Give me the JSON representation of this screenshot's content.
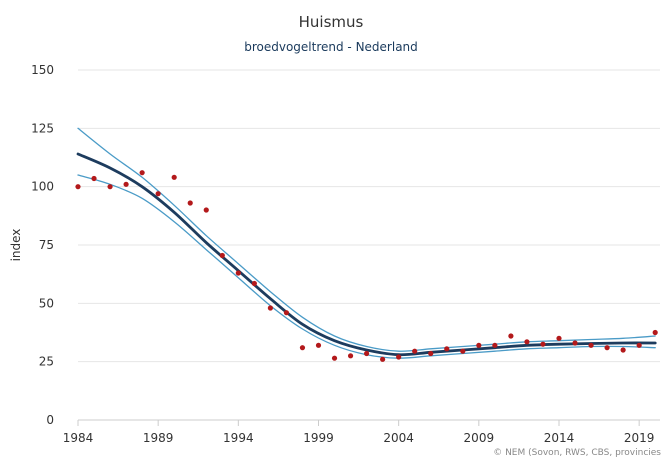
{
  "chart_data": {
    "type": "line",
    "title": "Huismus",
    "subtitle": "broedvogeltrend - Nederland",
    "ylabel": "index",
    "xlabel": "",
    "xlim": [
      1984,
      2020.3
    ],
    "ylim": [
      0,
      150
    ],
    "x_ticks": [
      "1984",
      "1989",
      "1994",
      "1999",
      "2004",
      "2009",
      "2014",
      "2019"
    ],
    "y_ticks": [
      "0",
      "25",
      "50",
      "75",
      "100",
      "125",
      "150"
    ],
    "grid": "horizontal",
    "colors": {
      "trend": "#1d3c5e",
      "band": "#4a9bc7",
      "points": "#b3191b",
      "grid": "#e6e6e6"
    },
    "series": [
      {
        "role": "trend",
        "x": [
          1984,
          1986,
          1988,
          1990,
          1992,
          1994,
          1996,
          1998,
          2000,
          2002,
          2004,
          2006,
          2008,
          2010,
          2012,
          2014,
          2016,
          2018,
          2020
        ],
        "y": [
          114,
          108,
          100,
          89,
          76,
          64,
          52,
          41,
          34,
          30,
          28,
          29,
          30,
          31,
          32,
          32.5,
          32.8,
          33,
          33
        ]
      },
      {
        "role": "upper",
        "x": [
          1984,
          1986,
          1988,
          1990,
          1992,
          1994,
          1996,
          1998,
          2000,
          2002,
          2004,
          2006,
          2008,
          2010,
          2012,
          2014,
          2016,
          2018,
          2020
        ],
        "y": [
          125,
          114,
          104,
          92,
          79,
          67,
          55,
          44,
          36,
          31.5,
          29.5,
          30.5,
          31.5,
          32.5,
          33.5,
          34,
          34.5,
          35,
          36
        ]
      },
      {
        "role": "lower",
        "x": [
          1984,
          1986,
          1988,
          1990,
          1992,
          1994,
          1996,
          1998,
          2000,
          2002,
          2004,
          2006,
          2008,
          2010,
          2012,
          2014,
          2016,
          2018,
          2020
        ],
        "y": [
          105,
          101,
          95,
          85,
          73,
          61,
          49,
          39,
          32,
          28,
          26.5,
          27.5,
          28.5,
          29.5,
          30.5,
          31,
          31.5,
          31.5,
          31
        ]
      },
      {
        "role": "index",
        "x": [
          1984,
          1985,
          1986,
          1987,
          1988,
          1989,
          1990,
          1991,
          1992,
          1993,
          1994,
          1995,
          1996,
          1997,
          1998,
          1999,
          2000,
          2001,
          2002,
          2003,
          2004,
          2005,
          2006,
          2007,
          2008,
          2009,
          2010,
          2011,
          2012,
          2013,
          2014,
          2015,
          2016,
          2017,
          2018,
          2019,
          2020
        ],
        "y": [
          100,
          103.5,
          100,
          101,
          106,
          97,
          104,
          93,
          90,
          70.5,
          63,
          58.5,
          48,
          46,
          31,
          32,
          26.5,
          27.5,
          28.5,
          26,
          27,
          29.5,
          28.5,
          30.5,
          29.5,
          32,
          32,
          36,
          33.5,
          32.5,
          35,
          33,
          32,
          31,
          30,
          32,
          37.5
        ]
      }
    ],
    "credits": "© NEM (Sovon, RWS, CBS, provincies"
  }
}
